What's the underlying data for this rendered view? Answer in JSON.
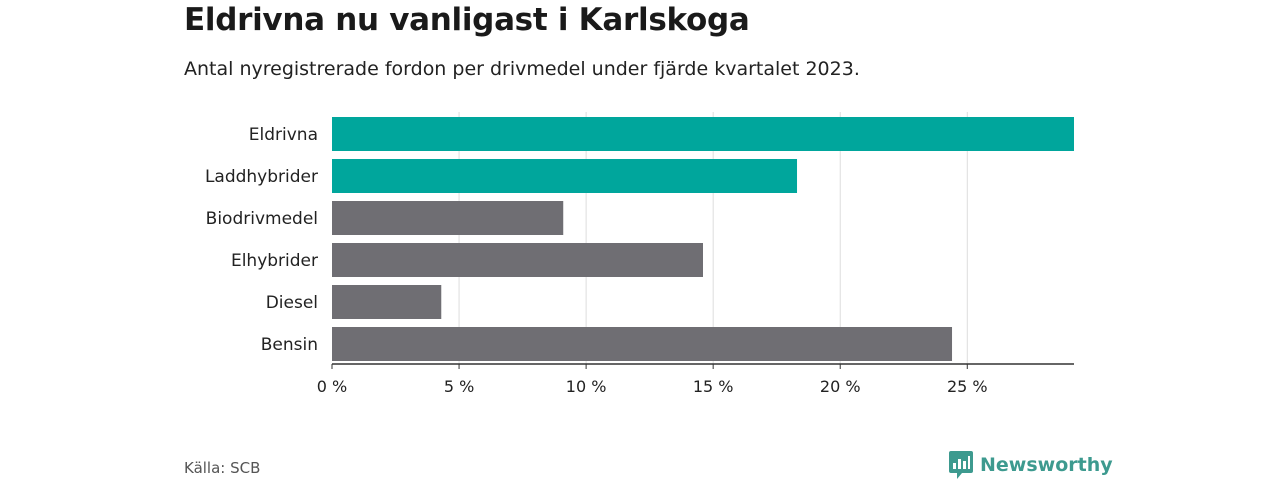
{
  "header": {
    "title": "Eldrivna nu vanligast i Karlskoga",
    "subtitle": "Antal nyregistrerade fordon per drivmedel under fjärde kvartalet 2023."
  },
  "footer": {
    "source": "Källa: SCB",
    "brand": "Newsworthy",
    "brand_icon": "bar-chart-speech-bubble-icon"
  },
  "colors": {
    "highlight": "#00a69c",
    "default": "#6f6e73",
    "grid": "#dddddd",
    "axis": "#333333",
    "brand": "#3d9a8f"
  },
  "chart_data": {
    "type": "bar",
    "orientation": "horizontal",
    "categories": [
      "Eldrivna",
      "Laddhybrider",
      "Biodrivmedel",
      "Elhybrider",
      "Diesel",
      "Bensin"
    ],
    "values": [
      29.2,
      18.3,
      9.1,
      14.6,
      4.3,
      24.4
    ],
    "highlighted": [
      true,
      true,
      false,
      false,
      false,
      false
    ],
    "xticks": [
      0,
      5,
      10,
      15,
      20,
      25
    ],
    "xtick_labels": [
      "0 %",
      "5 %",
      "10 %",
      "15 %",
      "20 %",
      "25 %"
    ],
    "xlim": [
      0,
      29.2
    ],
    "grid": true,
    "xlabel": "",
    "ylabel": ""
  }
}
